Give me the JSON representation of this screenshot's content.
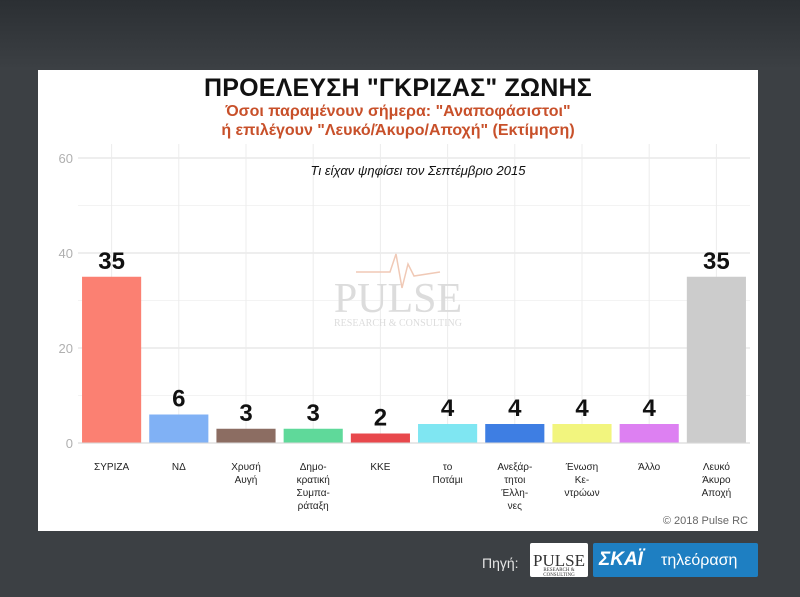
{
  "header": {
    "title": "ΠΡΟΕΛΕΥΣΗ \"ΓΚΡΙΖΑΣ\" ΖΩΝΗΣ",
    "subtitle_line1": "Όσοι παραμένουν σήμερα: \"Αναποφάσιστοι\"",
    "subtitle_line2": "ή επιλέγουν \"Λευκό/Άκυρο/Αποχή\" (Εκτίμηση)"
  },
  "chart_data": {
    "type": "bar",
    "annotation": "Τι είχαν ψηφίσει τον Σεπτέμβριο 2015",
    "categories": [
      [
        "ΣΥΡΙΖΑ"
      ],
      [
        "ΝΔ"
      ],
      [
        "Χρυσή",
        "Αυγή"
      ],
      [
        "Δημο-",
        "κρατική",
        "Συμπα-",
        "ράταξη"
      ],
      [
        "ΚΚΕ"
      ],
      [
        "το",
        "Ποτάμι"
      ],
      [
        "Ανεξάρ-",
        "τητοι",
        "Έλλη-",
        "νες"
      ],
      [
        "Ένωση",
        "Κε-",
        "ντρώων"
      ],
      [
        "Άλλο"
      ],
      [
        "Λευκό",
        "Άκυρο",
        "Αποχή"
      ]
    ],
    "values": [
      35,
      6,
      3,
      3,
      2,
      4,
      4,
      4,
      4,
      35
    ],
    "value_labels": [
      "35",
      "6",
      "3",
      "3",
      "2",
      "4",
      "4",
      "4",
      "4",
      "35"
    ],
    "colors": [
      "#fb8072",
      "#80b1f5",
      "#8c6d62",
      "#5fd99a",
      "#e8484c",
      "#7fe6f2",
      "#3e7ee3",
      "#f2f57e",
      "#dd80f2",
      "#cccccc"
    ],
    "y_ticks": [
      "0",
      "20",
      "40",
      "60"
    ],
    "ylim": [
      0,
      60
    ],
    "grid": true
  },
  "watermark": {
    "word": "PULSE",
    "sub": "RESEARCH & CONSULTING"
  },
  "copyright": "© 2018 Pulse RC",
  "footer": {
    "source_label": "Πηγή:",
    "pulse_logo": "PULSE",
    "pulse_logo_sub": "RESEARCH & CONSULTING",
    "broadcaster": "ΣΚΑΪ",
    "broadcaster_tv": "τηλεόραση"
  }
}
